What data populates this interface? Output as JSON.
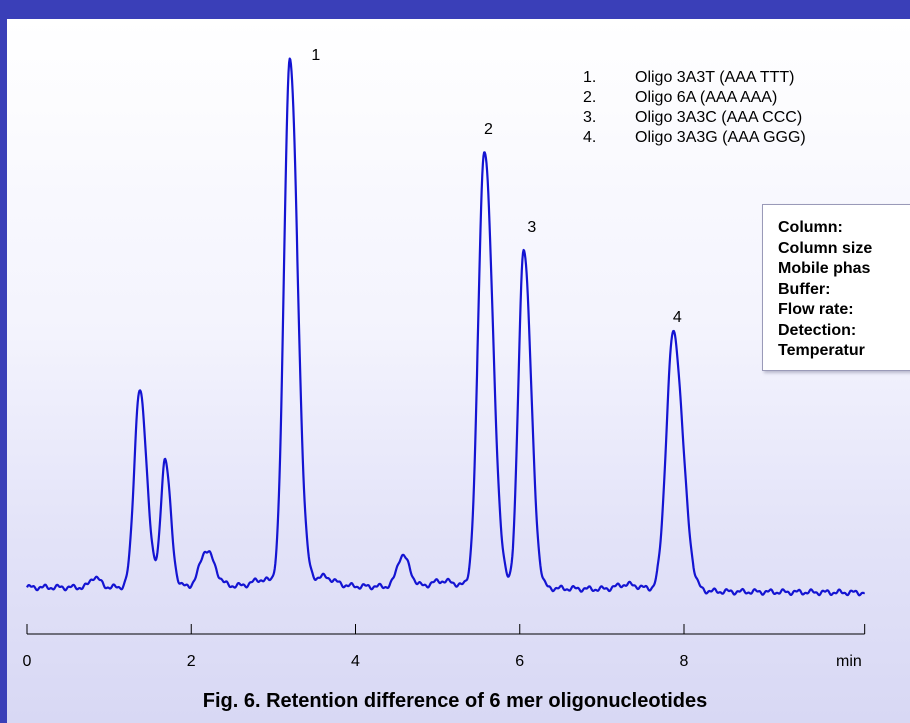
{
  "caption": "Fig. 6.  Retention difference of 6 mer oligonucleotides",
  "legend": [
    {
      "num": "1.",
      "label": "Oligo 3A3T (AAA TTT)"
    },
    {
      "num": "2.",
      "label": "Oligo 6A (AAA AAA)"
    },
    {
      "num": "3.",
      "label": "Oligo 3A3C (AAA CCC)"
    },
    {
      "num": "4.",
      "label": "Oligo 3A3G (AAA GGG)"
    }
  ],
  "conditions": [
    "Column:",
    "Column size",
    "Mobile phas",
    "Buffer:",
    "Flow rate:",
    "Detection:",
    "Temperatur"
  ],
  "colors": {
    "trace": "#1414d2",
    "frame": "#3a3fb8",
    "axis": "#000000"
  },
  "chart_data": {
    "type": "line",
    "xlabel": "min",
    "xlim": [
      0,
      10.2
    ],
    "ylim": [
      0,
      100
    ],
    "x_ticks": [
      0,
      2,
      4,
      6,
      8
    ],
    "x_tick_labels": [
      "0",
      "2",
      "4",
      "6",
      "8"
    ],
    "baseline": [
      [
        0.0,
        0.5
      ],
      [
        1.0,
        0.5
      ],
      [
        2.5,
        0.8
      ],
      [
        4.0,
        0.7
      ],
      [
        6.5,
        0.3
      ],
      [
        8.5,
        -0.3
      ],
      [
        10.2,
        -0.5
      ]
    ],
    "peaks": [
      {
        "rt": 0.82,
        "height": 2.0,
        "width": 0.05
      },
      {
        "rt": 1.37,
        "height": 37.2,
        "width": 0.065
      },
      {
        "rt": 1.68,
        "height": 24.2,
        "width": 0.05
      },
      {
        "rt": 2.18,
        "height": 6.8,
        "width": 0.075
      },
      {
        "rt": 2.85,
        "height": 1.2,
        "width": 0.1
      },
      {
        "rt": 3.2,
        "height": 100.0,
        "width": 0.07
      },
      {
        "rt": 3.6,
        "height": 1.8,
        "width": 0.1
      },
      {
        "rt": 4.57,
        "height": 6.0,
        "width": 0.065
      },
      {
        "rt": 5.05,
        "height": 1.2,
        "width": 0.12
      },
      {
        "rt": 5.57,
        "height": 83.0,
        "width": 0.075
      },
      {
        "rt": 6.05,
        "height": 64.4,
        "width": 0.065
      },
      {
        "rt": 7.3,
        "height": 1.0,
        "width": 0.12
      },
      {
        "rt": 7.87,
        "height": 48.9,
        "width": 0.085
      }
    ],
    "peak_labels": [
      {
        "text": "1",
        "rt": 3.2,
        "height": 100.0
      },
      {
        "text": "2",
        "rt": 5.57,
        "height": 83.0
      },
      {
        "text": "3",
        "rt": 6.05,
        "height": 64.4
      },
      {
        "text": "4",
        "rt": 7.87,
        "height": 48.9
      }
    ]
  }
}
